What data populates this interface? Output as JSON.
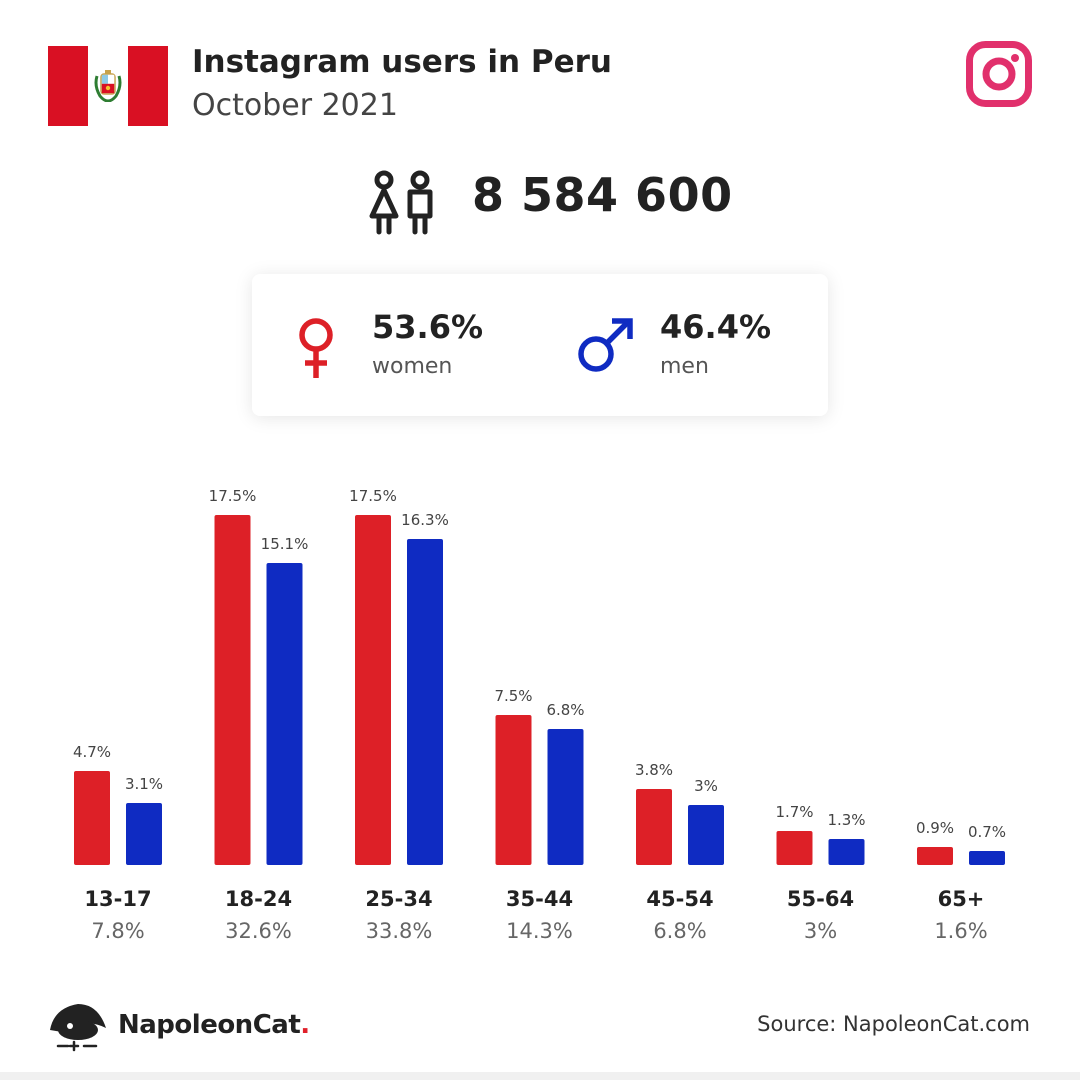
{
  "header": {
    "title": "Instagram users in Peru",
    "subtitle": "October 2021"
  },
  "total_users": "8 584 600",
  "gender": {
    "women_pct": "53.6%",
    "women_label": "women",
    "men_pct": "46.4%",
    "men_label": "men"
  },
  "colors": {
    "women": "#dd2027",
    "men": "#0f2bc2",
    "instagram": "#e1306c",
    "flag_red": "#d91023"
  },
  "icons": {
    "flag": "peru-flag-icon",
    "app": "instagram-icon",
    "people": "people-icon",
    "female": "female-symbol-icon",
    "male": "male-symbol-icon",
    "logo": "napoleoncat-logo-icon"
  },
  "chart_data": {
    "type": "bar",
    "categories": [
      "13-17",
      "18-24",
      "25-34",
      "35-44",
      "45-54",
      "55-64",
      "65+"
    ],
    "series": [
      {
        "name": "women",
        "values": [
          4.7,
          17.5,
          17.5,
          7.5,
          3.8,
          1.7,
          0.9
        ],
        "labels": [
          "4.7%",
          "17.5%",
          "17.5%",
          "7.5%",
          "3.8%",
          "1.7%",
          "0.9%"
        ]
      },
      {
        "name": "men",
        "values": [
          3.1,
          15.1,
          16.3,
          6.8,
          3,
          1.3,
          0.7
        ],
        "labels": [
          "3.1%",
          "15.1%",
          "16.3%",
          "6.8%",
          "3%",
          "1.3%",
          "0.7%"
        ]
      }
    ],
    "totals": [
      "7.8%",
      "32.6%",
      "33.8%",
      "14.3%",
      "6.8%",
      "3%",
      "1.6%"
    ],
    "ylim": [
      0,
      17.5
    ]
  },
  "footer": {
    "brand_name": "NapoleonCat",
    "brand_dot": ".",
    "source": "Source: NapoleonCat.com"
  }
}
